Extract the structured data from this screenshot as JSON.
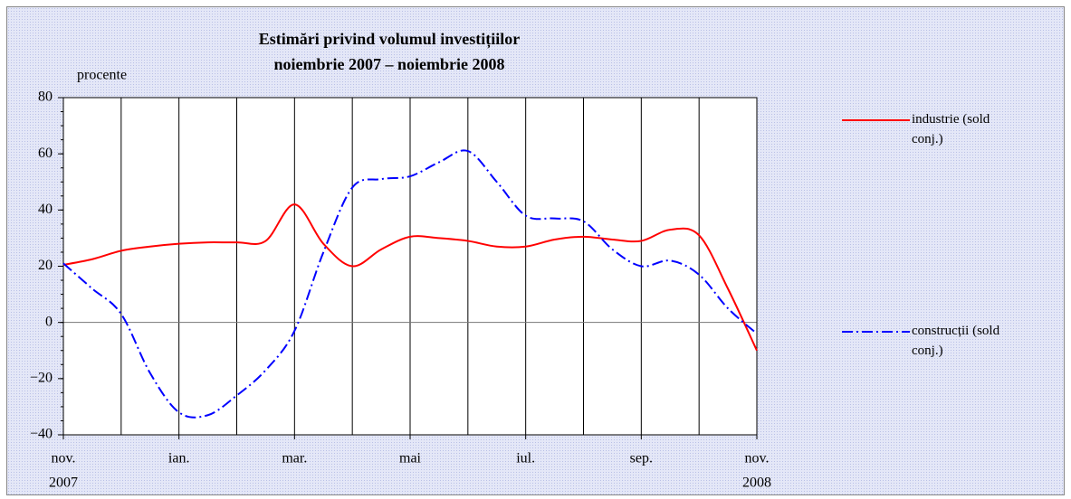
{
  "chart_data": {
    "type": "line",
    "title": "Estimări privind volumul investițiilor",
    "subtitle": "noiembrie 2007 – noiembrie 2008",
    "y_label": "procente",
    "x": [
      0,
      0.5,
      1,
      1.5,
      2,
      2.5,
      3,
      3.5,
      4,
      4.5,
      5,
      5.5,
      6,
      6.5,
      7,
      7.5,
      8,
      8.5,
      9,
      9.5,
      10,
      10.5,
      11,
      11.5,
      12
    ],
    "xlim": [
      0,
      12
    ],
    "xticks": [
      {
        "value": 0,
        "label": "nov."
      },
      {
        "value": 2,
        "label": "ian."
      },
      {
        "value": 4,
        "label": "mar."
      },
      {
        "value": 6,
        "label": "mai"
      },
      {
        "value": 8,
        "label": "iul."
      },
      {
        "value": 10,
        "label": "sep."
      },
      {
        "value": 12,
        "label": "nov."
      }
    ],
    "annotations": [
      {
        "x": 0,
        "text": "2007"
      },
      {
        "x": 12,
        "text": "2008"
      }
    ],
    "ylim": [
      -40,
      80
    ],
    "yticks": [
      {
        "value": -40,
        "label": "−40"
      },
      {
        "value": -20,
        "label": "−20"
      },
      0,
      20,
      40,
      60,
      80
    ],
    "series": [
      {
        "name": "industrie (sold conj.)",
        "color": "#ff0000",
        "dash": "solid",
        "values": [
          20.5,
          22.5,
          25.5,
          27,
          28,
          28.5,
          28.5,
          29,
          42,
          28,
          20,
          26,
          30.5,
          30,
          29,
          27,
          27,
          29.5,
          30.5,
          29.5,
          29,
          33,
          31,
          12,
          -10
        ]
      },
      {
        "name": "construcții (sold conj.)",
        "color": "#0000ff",
        "dash": "dashdot",
        "values": [
          21,
          12,
          3,
          -18,
          -32,
          -33,
          -26,
          -17,
          -3,
          25,
          48,
          51,
          52,
          57,
          61,
          50,
          38,
          37,
          36,
          26,
          20,
          22,
          17,
          5,
          -4
        ]
      }
    ]
  }
}
